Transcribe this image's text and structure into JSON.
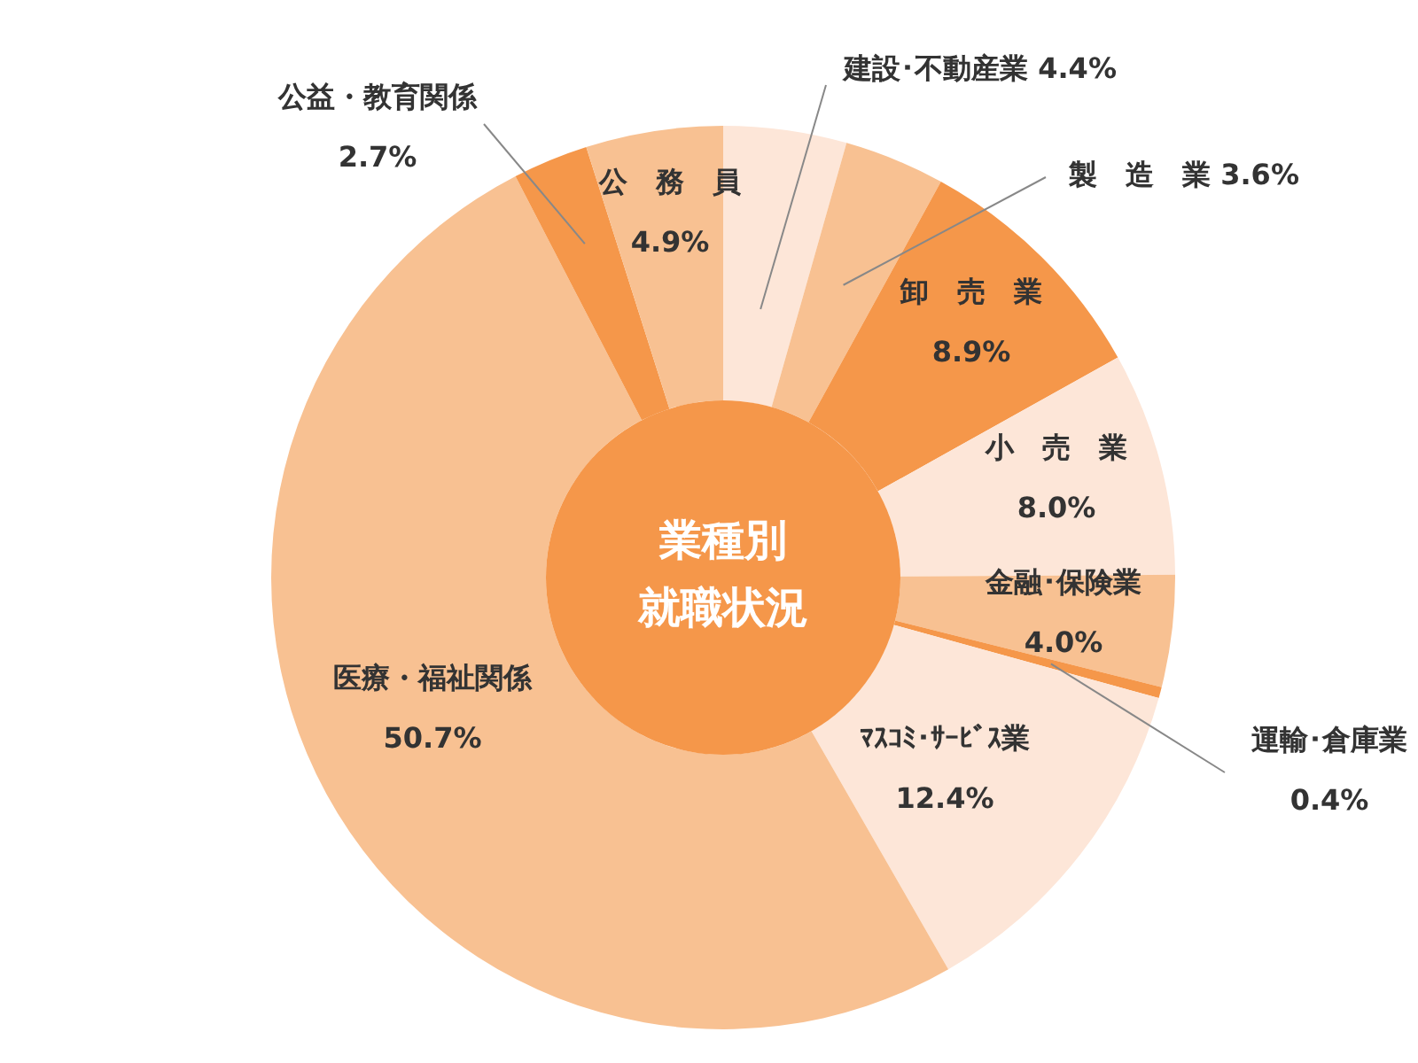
{
  "chart_data": {
    "type": "donut",
    "title": "業種別就職状況",
    "categories": [
      "建設･不動産業",
      "製　造　業",
      "卸　売　業",
      "小　売　業",
      "金融･保険業",
      "運輸･倉庫業",
      "ﾏｽｺﾐ･ｻｰﾋﾞｽ業",
      "医療・福祉関係",
      "公益・教育関係",
      "公　務　員"
    ],
    "values": [
      4.4,
      3.6,
      8.9,
      8.0,
      4.0,
      0.4,
      12.4,
      50.7,
      2.7,
      4.9
    ],
    "value_labels": [
      "4.4%",
      "3.6%",
      "8.9%",
      "8.0%",
      "4.0%",
      "0.4%",
      "12.4%",
      "50.7%",
      "2.7%",
      "4.9%"
    ],
    "colors": [
      "#fde6d8",
      "#f8c192",
      "#f5974a",
      "#fde6d8",
      "#f8c192",
      "#f5974a",
      "#fde6d8",
      "#f8c192",
      "#f5974a",
      "#f8c192"
    ]
  }
}
